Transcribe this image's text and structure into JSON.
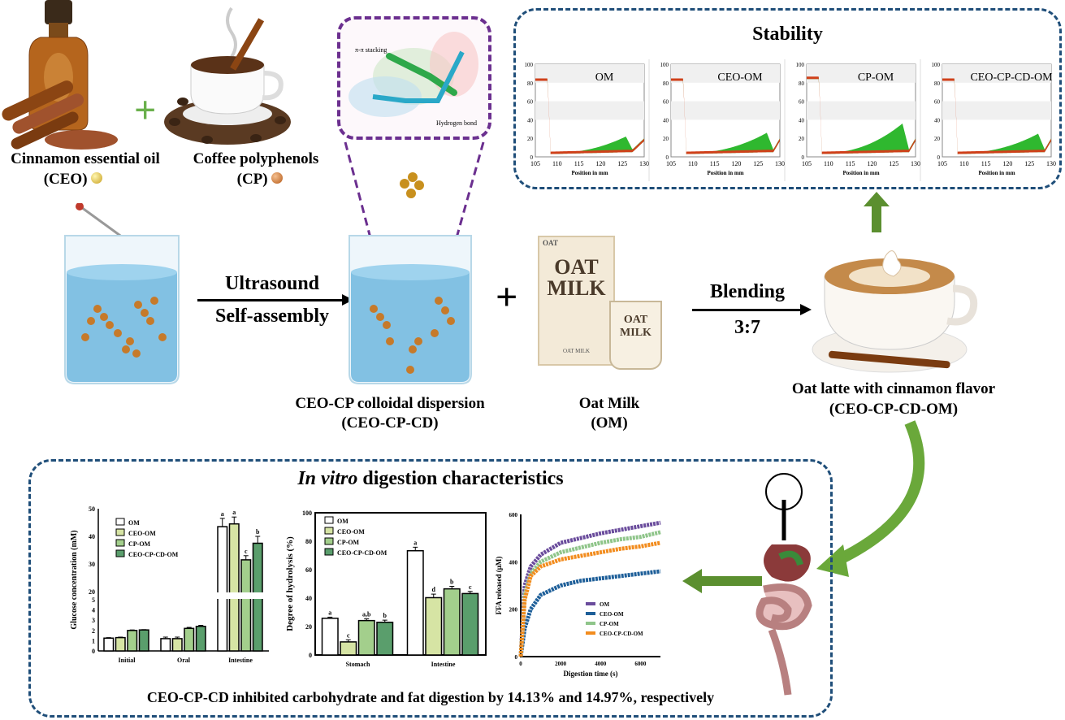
{
  "ingredients": {
    "ceo_name": "Cinnamon essential oil",
    "ceo_abbr": "(CEO)",
    "cp_name": "Coffee polyphenols",
    "cp_abbr": "(CP)",
    "plus": "+"
  },
  "process": {
    "step1_line1": "Ultrasound",
    "step1_line2": "Self-assembly",
    "dispersion_name": "CEO-CP colloidal dispersion",
    "dispersion_abbr": "(CEO-CP-CD)",
    "plus": "+",
    "oatmilk_name": "Oat Milk",
    "oatmilk_abbr": "(OM)",
    "step2_line1": "Blending",
    "step2_line2": "3:7",
    "product_name": "Oat latte with cinnamon flavor",
    "product_abbr": "(CEO-CP-CD-OM)"
  },
  "molecule_inset": {
    "label1": "π-π stacking",
    "label2": "Hydrogen bond"
  },
  "carton": {
    "brand_line1": "OAT",
    "brand_line2": "MILK",
    "small": "OAT",
    "cup_line1": "OAT",
    "cup_line2": "MILK",
    "footer": "OAT MILK"
  },
  "colors": {
    "navy": "#1f4e79",
    "green_arrow": "#5b8f2f",
    "purple": "#6b2f8f",
    "bar_om": "#ffffff",
    "bar_ceo": "#d6e4a4",
    "bar_cp": "#a3cf8c",
    "bar_ceocpcd": "#5a9e6c"
  },
  "stability": {
    "title": "Stability"
  },
  "digestion": {
    "title_italic": "In vitro",
    "title_rest": " digestion characteristics",
    "conclusion": "CEO-CP-CD inhibited carbohydrate and fat digestion by 14.13% and 14.97%, respectively"
  },
  "chart_data": [
    {
      "id": "stab-om",
      "type": "area",
      "title": "OM",
      "xlabel": "Position in mm",
      "xlim": [
        105,
        130
      ],
      "ylim": [
        0,
        100
      ],
      "xticks": [
        105,
        110,
        115,
        120,
        125,
        130
      ],
      "yticks": [
        0,
        20,
        40,
        60,
        80,
        100
      ],
      "plateau": 84,
      "peak": 22,
      "peak_pos": 125.8
    },
    {
      "id": "stab-ceo",
      "type": "area",
      "title": "CEO-OM",
      "xlabel": "Position in mm",
      "xlim": [
        105,
        130
      ],
      "ylim": [
        0,
        100
      ],
      "xticks": [
        105,
        110,
        115,
        120,
        125,
        130
      ],
      "yticks": [
        0,
        20,
        40,
        60,
        80,
        100
      ],
      "plateau": 84,
      "peak": 26,
      "peak_pos": 127
    },
    {
      "id": "stab-cp",
      "type": "area",
      "title": "CP-OM",
      "xlabel": "Position in mm",
      "xlim": [
        105,
        130
      ],
      "ylim": [
        0,
        100
      ],
      "xticks": [
        105,
        110,
        115,
        120,
        125,
        130
      ],
      "yticks": [
        0,
        20,
        40,
        60,
        80,
        100
      ],
      "plateau": 86,
      "peak": 36,
      "peak_pos": 127
    },
    {
      "id": "stab-ceocpcd",
      "type": "area",
      "title": "CEO-CP-CD-OM",
      "xlabel": "Position in mm",
      "xlim": [
        105,
        130
      ],
      "ylim": [
        0,
        100
      ],
      "xticks": [
        105,
        110,
        115,
        120,
        125,
        130
      ],
      "yticks": [
        0,
        20,
        40,
        60,
        80,
        100
      ],
      "plateau": 84,
      "peak": 25,
      "peak_pos": 127
    },
    {
      "id": "glucose",
      "type": "bar",
      "ylabel": "Glucose concentration (mM)",
      "categories": [
        "Initial",
        "Oral",
        "Intestine"
      ],
      "ylim": [
        0,
        50
      ],
      "axis_break": [
        5,
        20
      ],
      "yticks_lower": [
        0,
        1,
        2,
        3,
        4,
        5
      ],
      "yticks_upper": [
        20,
        30,
        40,
        50
      ],
      "series": [
        {
          "name": "OM",
          "values": [
            1.25,
            1.2,
            43.5
          ],
          "errors": [
            0.05,
            0.15,
            3
          ]
        },
        {
          "name": "CEO-OM",
          "values": [
            1.3,
            1.2,
            44.5
          ],
          "errors": [
            0.05,
            0.15,
            2.5
          ]
        },
        {
          "name": "CP-OM",
          "values": [
            2.0,
            2.2,
            31.5
          ],
          "errors": [
            0.05,
            0.1,
            1.5
          ]
        },
        {
          "name": "CEO-CP-CD-OM",
          "values": [
            2.05,
            2.4,
            37.5
          ],
          "errors": [
            0.03,
            0.1,
            2.5
          ]
        }
      ],
      "letters": [
        [
          "",
          "",
          "a"
        ],
        [
          "",
          "",
          "a"
        ],
        [
          "",
          "",
          "c"
        ],
        [
          "",
          "",
          "b"
        ]
      ]
    },
    {
      "id": "hydrolysis",
      "type": "bar",
      "ylabel": "Degree of hydrolysis (%)",
      "categories": [
        "Stomach",
        "Intestine"
      ],
      "ylim": [
        0,
        100
      ],
      "yticks": [
        0,
        20,
        40,
        60,
        80,
        100
      ],
      "series": [
        {
          "name": "OM",
          "values": [
            25.8,
            73.3
          ],
          "errors": [
            0.8,
            2.5
          ]
        },
        {
          "name": "CEO-OM",
          "values": [
            9.2,
            40.3
          ],
          "errors": [
            1.5,
            2.5
          ]
        },
        {
          "name": "CP-OM",
          "values": [
            24.2,
            46.5
          ],
          "errors": [
            1.2,
            1.8
          ]
        },
        {
          "name": "CEO-CP-CD-OM",
          "values": [
            23.0,
            43.2
          ],
          "errors": [
            1.5,
            1.5
          ]
        }
      ],
      "letters": [
        [
          "a",
          "a"
        ],
        [
          "c",
          "d"
        ],
        [
          "a,b",
          "b"
        ],
        [
          "b",
          "c"
        ]
      ]
    },
    {
      "id": "ffa",
      "type": "line",
      "xlabel": "Digestion time (s)",
      "ylabel": "FFA released (μM)",
      "xlim": [
        0,
        7000
      ],
      "ylim": [
        0,
        600
      ],
      "xticks": [
        0,
        2000,
        4000,
        6000
      ],
      "yticks": [
        0,
        200,
        400,
        600
      ],
      "x": [
        0,
        200,
        500,
        1000,
        2000,
        3000,
        4000,
        5000,
        6000,
        7000
      ],
      "series": [
        {
          "name": "OM",
          "values": [
            0,
            300,
            380,
            430,
            480,
            500,
            520,
            535,
            550,
            565
          ]
        },
        {
          "name": "CEO-OM",
          "values": [
            0,
            120,
            200,
            260,
            300,
            320,
            330,
            340,
            350,
            360
          ]
        },
        {
          "name": "CP-OM",
          "values": [
            0,
            260,
            350,
            400,
            440,
            460,
            480,
            495,
            505,
            525
          ]
        },
        {
          "name": "CEO-CP-CD-OM",
          "values": [
            0,
            240,
            340,
            380,
            410,
            425,
            440,
            455,
            465,
            480
          ]
        }
      ]
    }
  ]
}
